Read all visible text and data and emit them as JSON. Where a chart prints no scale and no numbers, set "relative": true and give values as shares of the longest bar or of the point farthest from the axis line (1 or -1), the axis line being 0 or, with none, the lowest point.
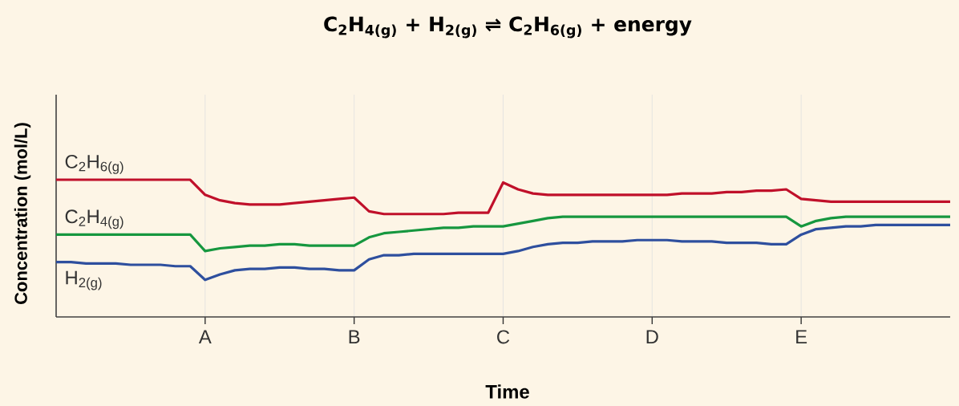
{
  "chart_data": {
    "type": "line",
    "title": "C$_{2}$H$_{4(g)}$ + H$_{2(g)}$ ⇌ C$_{2}$H$_{6(g)}$ + energy",
    "xlabel": "Time",
    "ylabel": "Concentration (mol/L)",
    "relative": true,
    "grid": "x",
    "categories": [
      null,
      null,
      null,
      null,
      null,
      null,
      null,
      null,
      null,
      null,
      "A",
      null,
      null,
      null,
      null,
      null,
      null,
      null,
      null,
      null,
      "B",
      null,
      null,
      null,
      null,
      null,
      null,
      null,
      null,
      null,
      "C",
      null,
      null,
      null,
      null,
      null,
      null,
      null,
      null,
      null,
      "D",
      null,
      null,
      null,
      null,
      null,
      null,
      null,
      null,
      null,
      "E",
      null,
      null,
      null,
      null,
      null,
      null,
      null,
      null,
      null,
      null
    ],
    "series": [
      {
        "name": "C$_{2}$H$_{6(g)}$",
        "color": "#c0102a",
        "values": [
          1,
          1,
          1,
          1,
          1,
          1,
          1,
          1,
          1,
          1,
          0.89,
          0.85,
          0.83,
          0.82,
          0.82,
          0.82,
          0.83,
          0.84,
          0.85,
          0.86,
          0.87,
          0.77,
          0.75,
          0.75,
          0.75,
          0.75,
          0.75,
          0.76,
          0.76,
          0.76,
          0.98,
          0.93,
          0.9,
          0.89,
          0.89,
          0.89,
          0.89,
          0.89,
          0.89,
          0.89,
          0.89,
          0.89,
          0.9,
          0.9,
          0.9,
          0.91,
          0.91,
          0.92,
          0.92,
          0.93,
          0.86,
          0.85,
          0.84,
          0.84,
          0.84,
          0.84,
          0.84,
          0.84,
          0.84,
          0.84,
          0.84
        ]
      },
      {
        "name": "C$_{2}$H$_{4(g)}$",
        "color": "#16973f",
        "values": [
          0.6,
          0.6,
          0.6,
          0.6,
          0.6,
          0.6,
          0.6,
          0.6,
          0.6,
          0.6,
          0.48,
          0.5,
          0.51,
          0.52,
          0.52,
          0.53,
          0.53,
          0.52,
          0.52,
          0.52,
          0.52,
          0.58,
          0.61,
          0.62,
          0.63,
          0.64,
          0.65,
          0.65,
          0.66,
          0.66,
          0.66,
          0.68,
          0.7,
          0.72,
          0.73,
          0.73,
          0.73,
          0.73,
          0.73,
          0.73,
          0.73,
          0.73,
          0.73,
          0.73,
          0.73,
          0.73,
          0.73,
          0.73,
          0.73,
          0.73,
          0.66,
          0.7,
          0.72,
          0.73,
          0.73,
          0.73,
          0.73,
          0.73,
          0.73,
          0.73,
          0.73
        ]
      },
      {
        "name": "H$_{2(g)}$",
        "color": "#2e4f9e",
        "values": [
          0.4,
          0.4,
          0.39,
          0.39,
          0.39,
          0.38,
          0.38,
          0.38,
          0.37,
          0.37,
          0.27,
          0.31,
          0.34,
          0.35,
          0.35,
          0.36,
          0.36,
          0.35,
          0.35,
          0.34,
          0.34,
          0.42,
          0.45,
          0.45,
          0.46,
          0.46,
          0.46,
          0.46,
          0.46,
          0.46,
          0.46,
          0.48,
          0.51,
          0.53,
          0.54,
          0.54,
          0.55,
          0.55,
          0.55,
          0.56,
          0.56,
          0.56,
          0.55,
          0.55,
          0.55,
          0.54,
          0.54,
          0.54,
          0.53,
          0.53,
          0.6,
          0.64,
          0.65,
          0.66,
          0.66,
          0.67,
          0.67,
          0.67,
          0.67,
          0.67,
          0.67
        ]
      }
    ]
  }
}
